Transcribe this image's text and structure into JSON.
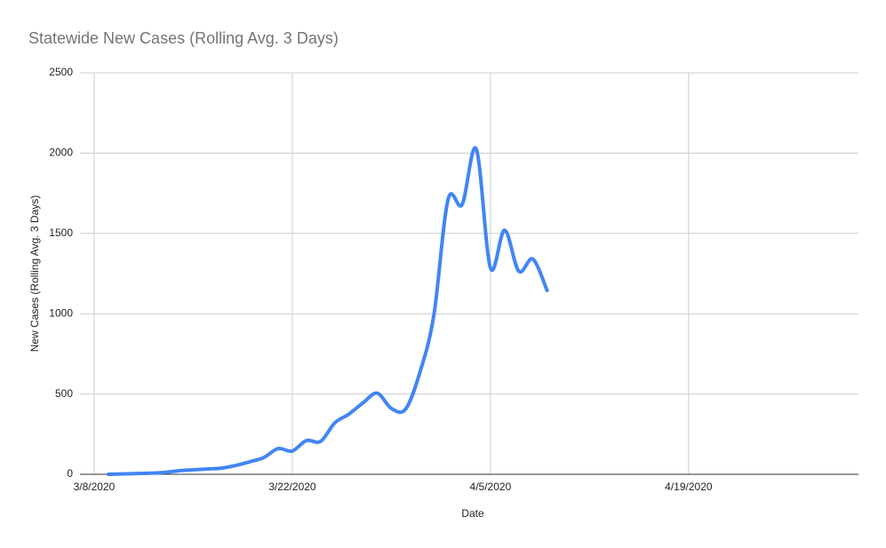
{
  "chart_data": {
    "type": "line",
    "title": "Statewide New Cases (Rolling Avg. 3 Days)",
    "x_label": "Date",
    "y_label": "New Cases (Rolling Avg. 3 Days)",
    "x": [
      "3/9/2020",
      "3/10/2020",
      "3/11/2020",
      "3/12/2020",
      "3/13/2020",
      "3/14/2020",
      "3/15/2020",
      "3/16/2020",
      "3/17/2020",
      "3/18/2020",
      "3/19/2020",
      "3/20/2020",
      "3/21/2020",
      "3/22/2020",
      "3/23/2020",
      "3/24/2020",
      "3/25/2020",
      "3/26/2020",
      "3/27/2020",
      "3/28/2020",
      "3/29/2020",
      "3/30/2020",
      "3/31/2020",
      "4/1/2020",
      "4/2/2020",
      "4/3/2020",
      "4/4/2020",
      "4/5/2020",
      "4/6/2020",
      "4/7/2020",
      "4/8/2020",
      "4/9/2020"
    ],
    "series": [
      {
        "name": "New Cases (Rolling Avg. 3 Days)",
        "color": "#4285f4",
        "values": [
          0,
          2,
          5,
          7,
          12,
          22,
          28,
          33,
          38,
          55,
          78,
          105,
          160,
          145,
          210,
          205,
          320,
          375,
          445,
          505,
          410,
          405,
          630,
          990,
          1710,
          1680,
          2025,
          1285,
          1520,
          1265,
          1340,
          1145
        ]
      }
    ],
    "xlim": [
      "3/7/2020",
      "5/1/2020"
    ],
    "xticks": [
      "3/8/2020",
      "3/22/2020",
      "4/5/2020",
      "4/19/2020"
    ],
    "ylim": [
      0,
      2500
    ],
    "yticks": [
      0,
      500,
      1000,
      1500,
      2000,
      2500
    ],
    "grid": true
  }
}
